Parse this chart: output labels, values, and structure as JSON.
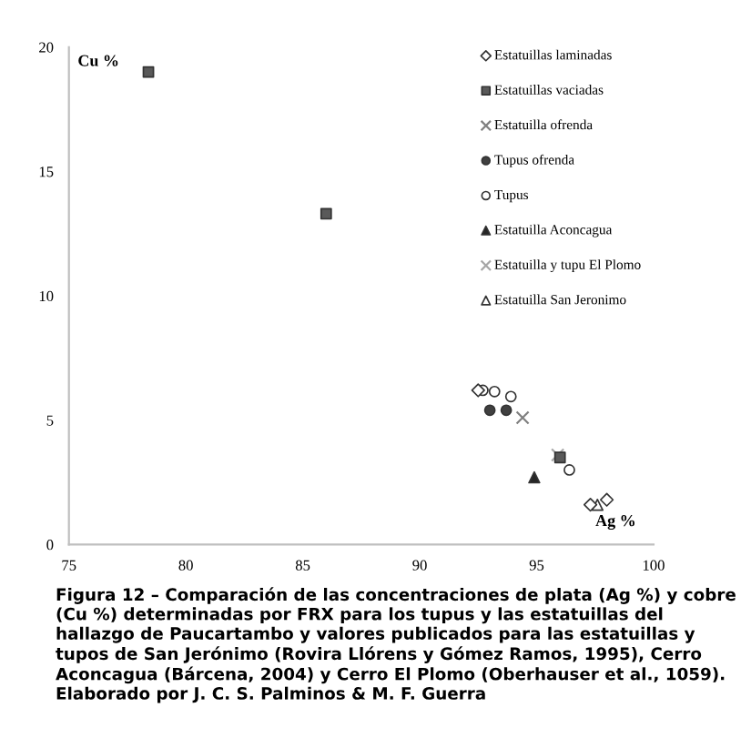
{
  "chart_data": {
    "type": "scatter",
    "xlabel": "Ag %",
    "ylabel": "Cu %",
    "xlim": [
      75,
      100
    ],
    "xticks": [
      75,
      80,
      85,
      90,
      95,
      100
    ],
    "ylim": [
      0,
      20
    ],
    "yticks": [
      0,
      5,
      10,
      15,
      20
    ],
    "grid": false,
    "legend": "top right",
    "series": [
      {
        "name": "Estatuillas laminadas",
        "marker": "diamond",
        "color": "#ffffff",
        "x": [
          92.5,
          97.3,
          98.0
        ],
        "values": [
          6.2,
          1.6,
          1.8
        ]
      },
      {
        "name": "Estatuillas vaciadas",
        "marker": "square",
        "color": "#595959",
        "x": [
          78.4,
          86.0,
          96.0
        ],
        "values": [
          19.0,
          13.3,
          3.5
        ]
      },
      {
        "name": "Estatuilla ofrenda",
        "marker": "cross",
        "color": "#808080",
        "x": [
          94.4
        ],
        "values": [
          5.1
        ]
      },
      {
        "name": "Tupus ofrenda",
        "marker": "circle",
        "color": "#404040",
        "x": [
          93.0,
          93.7
        ],
        "values": [
          5.4,
          5.4
        ]
      },
      {
        "name": "Tupus",
        "marker": "circle",
        "color": "#ffffff",
        "x": [
          92.7,
          93.2,
          93.9,
          96.4
        ],
        "values": [
          6.2,
          6.15,
          5.95,
          3.0
        ]
      },
      {
        "name": "Estatuilla Aconcagua",
        "marker": "triangle",
        "color": "#262626",
        "x": [
          94.9
        ],
        "values": [
          2.7
        ]
      },
      {
        "name": "Estatuilla y tupu El Plomo",
        "marker": "cross",
        "color": "#a6a6a6",
        "x": [
          95.9
        ],
        "values": [
          3.6
        ]
      },
      {
        "name": "Estatuilla San Jeronimo",
        "marker": "triangle",
        "color": "#ffffff",
        "x": [
          97.6
        ],
        "values": [
          1.6
        ]
      }
    ],
    "annotations": [
      "Figura 12 – Comparación de las concentraciones de plata (Ag %) y cobre (Cu %) determinadas por FRX para los tupus y las estatuillas del hallazgo de Paucartambo y valores publicados para las estatuillas y tupos de San Jerónimo (Rovira Llórens y Gómez Ramos, 1995), Cerro Aconcagua (Bárcena, 2004) y Cerro El Plomo (Oberhauser et al., 1059). Elaborado por J. C. S. Palminos & M. F. Guerra"
    ]
  }
}
